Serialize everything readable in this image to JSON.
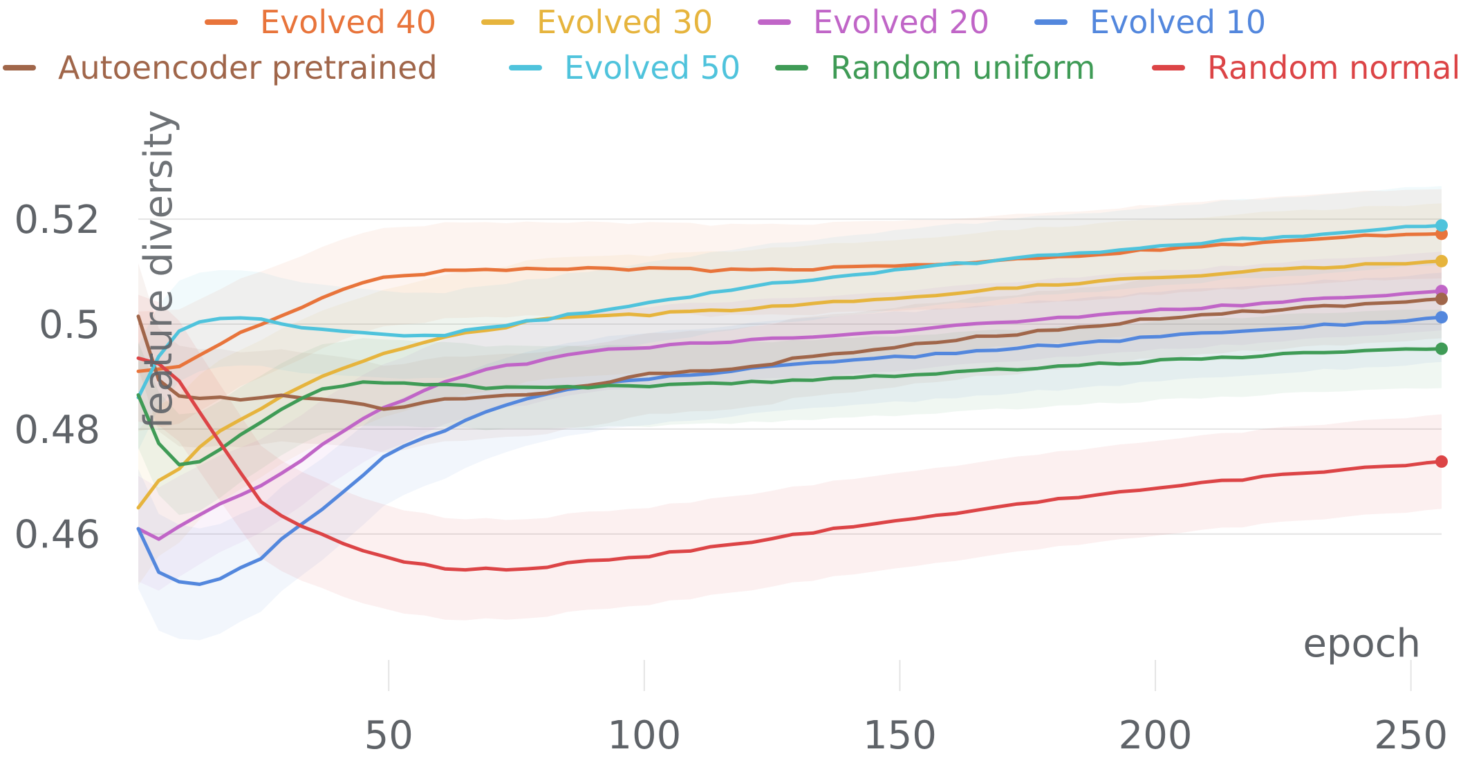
{
  "chart_data": {
    "type": "line",
    "title": "",
    "xlabel": "epoch",
    "ylabel": "feature diversity",
    "xlim": [
      1,
      256
    ],
    "ylim": [
      0.436,
      0.542
    ],
    "x_ticks": [
      50,
      100,
      150,
      200,
      250
    ],
    "x_tick_labels": [
      "50",
      "100",
      "150",
      "200",
      "250"
    ],
    "y_ticks": [
      0.46,
      0.48,
      0.5,
      0.52
    ],
    "y_tick_labels": [
      "0.46",
      "0.48",
      "0.5",
      "0.52"
    ],
    "grid": true,
    "legend_position": "top",
    "legend": [
      {
        "name": "Evolved 40",
        "color": "#e8743b"
      },
      {
        "name": "Evolved 30",
        "color": "#e6b43d"
      },
      {
        "name": "Evolved 20",
        "color": "#c065c7"
      },
      {
        "name": "Evolved 10",
        "color": "#5387dd"
      },
      {
        "name": "Autoencoder pretrained",
        "color": "#a0664a"
      },
      {
        "name": "Evolved 50",
        "color": "#4fc3dc"
      },
      {
        "name": "Random uniform",
        "color": "#3f9b56"
      },
      {
        "name": "Random normal",
        "color": "#dc4446"
      }
    ],
    "series": [
      {
        "name": "Evolved 40",
        "color": "#e8743b",
        "band": 0.0085,
        "x": [
          1,
          10,
          20,
          30,
          40,
          50,
          55,
          60,
          70,
          80,
          100,
          120,
          140,
          160,
          180,
          200,
          220,
          240,
          256
        ],
        "y": [
          0.491,
          0.492,
          0.498,
          0.502,
          0.506,
          0.5095,
          0.509,
          0.5105,
          0.5105,
          0.5105,
          0.5105,
          0.5102,
          0.5108,
          0.5114,
          0.5128,
          0.5142,
          0.5155,
          0.5168,
          0.5172
        ]
      },
      {
        "name": "Evolved 30",
        "color": "#e6b43d",
        "band": 0.011,
        "x": [
          1,
          5,
          10,
          15,
          20,
          25,
          30,
          40,
          50,
          60,
          70,
          80,
          90,
          100,
          120,
          140,
          160,
          180,
          200,
          220,
          240,
          256
        ],
        "y": [
          0.465,
          0.47,
          0.473,
          0.479,
          0.481,
          0.484,
          0.487,
          0.491,
          0.4945,
          0.4975,
          0.499,
          0.501,
          0.5015,
          0.5018,
          0.503,
          0.5045,
          0.5058,
          0.5075,
          0.5088,
          0.5102,
          0.5112,
          0.512
        ]
      },
      {
        "name": "Evolved 20",
        "color": "#c065c7",
        "band": 0.0075,
        "x": [
          1,
          5,
          10,
          15,
          20,
          25,
          30,
          40,
          50,
          60,
          70,
          80,
          90,
          100,
          120,
          140,
          160,
          180,
          200,
          220,
          240,
          256
        ],
        "y": [
          0.461,
          0.459,
          0.462,
          0.465,
          0.467,
          0.469,
          0.472,
          0.479,
          0.4845,
          0.4885,
          0.4915,
          0.493,
          0.495,
          0.4955,
          0.497,
          0.498,
          0.4995,
          0.501,
          0.5025,
          0.5038,
          0.5052,
          0.5063
        ]
      },
      {
        "name": "Evolved 10",
        "color": "#5387dd",
        "band": 0.0085,
        "x": [
          1,
          5,
          10,
          15,
          20,
          25,
          30,
          40,
          50,
          60,
          70,
          80,
          90,
          100,
          120,
          140,
          160,
          180,
          200,
          220,
          240,
          256
        ],
        "y": [
          0.461,
          0.4525,
          0.4508,
          0.4505,
          0.453,
          0.4555,
          0.46,
          0.467,
          0.4755,
          0.4795,
          0.4835,
          0.4865,
          0.4885,
          0.4895,
          0.4915,
          0.493,
          0.4945,
          0.496,
          0.4975,
          0.499,
          0.5002,
          0.5013
        ]
      },
      {
        "name": "Autoencoder pretrained",
        "color": "#a0664a",
        "band": 0.0075,
        "x": [
          1,
          5,
          10,
          15,
          20,
          30,
          40,
          45,
          50,
          60,
          70,
          80,
          90,
          100,
          110,
          120,
          130,
          140,
          160,
          180,
          200,
          220,
          240,
          256
        ],
        "y": [
          0.5015,
          0.4895,
          0.4855,
          0.4865,
          0.4855,
          0.4865,
          0.4855,
          0.4845,
          0.4838,
          0.4855,
          0.486,
          0.487,
          0.4885,
          0.4905,
          0.491,
          0.4915,
          0.4935,
          0.4945,
          0.497,
          0.4988,
          0.501,
          0.5025,
          0.5038,
          0.5048
        ]
      },
      {
        "name": "Evolved 50",
        "color": "#4fc3dc",
        "band": 0.0075,
        "x": [
          1,
          5,
          10,
          15,
          20,
          25,
          30,
          40,
          50,
          60,
          70,
          80,
          90,
          100,
          120,
          140,
          160,
          180,
          200,
          220,
          240,
          256
        ],
        "y": [
          0.486,
          0.494,
          0.4995,
          0.501,
          0.5012,
          0.5008,
          0.4995,
          0.4985,
          0.4978,
          0.4978,
          0.4995,
          0.5008,
          0.5025,
          0.504,
          0.507,
          0.5095,
          0.5113,
          0.5132,
          0.5148,
          0.5163,
          0.5178,
          0.5188
        ]
      },
      {
        "name": "Random uniform",
        "color": "#3f9b56",
        "band": 0.0075,
        "x": [
          1,
          5,
          10,
          15,
          20,
          25,
          30,
          35,
          40,
          45,
          50,
          60,
          70,
          80,
          100,
          120,
          140,
          160,
          180,
          200,
          220,
          240,
          256
        ],
        "y": [
          0.4865,
          0.4775,
          0.4722,
          0.4745,
          0.478,
          0.4815,
          0.4845,
          0.4868,
          0.4882,
          0.4888,
          0.4888,
          0.4885,
          0.4878,
          0.4878,
          0.4882,
          0.4888,
          0.4898,
          0.4908,
          0.4918,
          0.493,
          0.494,
          0.4948,
          0.4953
        ]
      },
      {
        "name": "Random normal",
        "color": "#dc4446",
        "band": 0.009,
        "x": [
          1,
          5,
          10,
          15,
          20,
          25,
          30,
          35,
          40,
          45,
          50,
          55,
          60,
          70,
          80,
          90,
          100,
          120,
          140,
          160,
          180,
          200,
          220,
          240,
          256
        ],
        "y": [
          0.4935,
          0.4925,
          0.488,
          0.48,
          0.473,
          0.466,
          0.463,
          0.4605,
          0.4585,
          0.457,
          0.4555,
          0.4545,
          0.4535,
          0.4532,
          0.4538,
          0.4548,
          0.4558,
          0.4585,
          0.4615,
          0.4638,
          0.4665,
          0.4688,
          0.4708,
          0.4725,
          0.4738
        ]
      }
    ]
  }
}
